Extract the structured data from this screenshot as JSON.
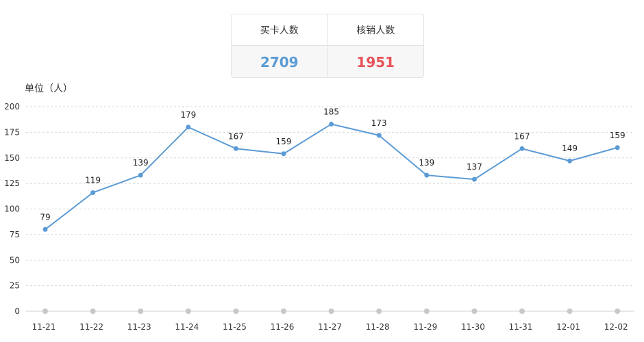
{
  "stats": {
    "headers": [
      "买卡人数",
      "核销人数"
    ],
    "values": [
      "2709",
      "1951"
    ],
    "value_colors": [
      "#5b9bd5",
      "#e8535a"
    ]
  },
  "chart_data": {
    "type": "line",
    "title": "",
    "ylabel": "单位（人）",
    "xlabel": "",
    "categories": [
      "11-21",
      "11-22",
      "11-23",
      "11-24",
      "11-25",
      "11-26",
      "11-27",
      "11-28",
      "11-29",
      "11-30",
      "11-31",
      "12-01",
      "12-02"
    ],
    "series": [
      {
        "values": [
          79,
          119,
          139,
          179,
          167,
          159,
          185,
          173,
          139,
          137,
          167,
          149,
          159
        ],
        "point_values": [
          80,
          116,
          133,
          180,
          159,
          154,
          183,
          172,
          133,
          129,
          159,
          147,
          160
        ],
        "color": "#5b9bd5"
      }
    ],
    "ylim": [
      0,
      200
    ],
    "yticks": [
      0,
      25,
      50,
      75,
      100,
      125,
      150,
      175,
      200
    ],
    "grid": true,
    "grid_style": "dashed",
    "legend": "none",
    "baseline_marker_color": "#c8c8c8"
  }
}
